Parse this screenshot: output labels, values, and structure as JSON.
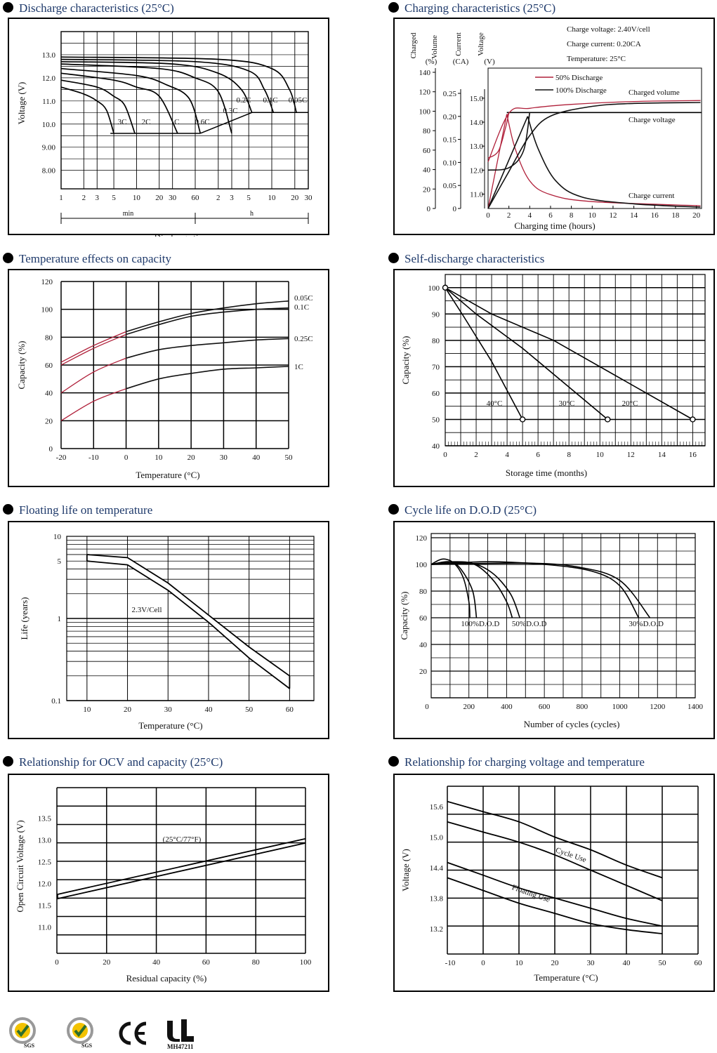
{
  "charts": {
    "discharge": {
      "title": "Discharge characteristics (25°C)",
      "chart_data": {
        "type": "line",
        "title": "Discharge characteristics (25°C)",
        "xlabel": "Discharge time",
        "ylabel": "Voltage (V)",
        "y_ticks": [
          "13.0",
          "12.0",
          "11.0",
          "10.0",
          "9.00",
          "8.00"
        ],
        "x_ticks_min": [
          "1",
          "2",
          "3",
          "5",
          "10",
          "20",
          "30",
          "60"
        ],
        "x_ticks_h": [
          "2",
          "3",
          "5",
          "10",
          "20",
          "30"
        ],
        "x_units": [
          "min",
          "h"
        ],
        "series": [
          {
            "name": "3C",
            "x_min": [
              1,
              2,
              3,
              4,
              5
            ],
            "y": [
              11.6,
              11.3,
              11.0,
              10.6,
              9.6
            ]
          },
          {
            "name": "2C",
            "x_min": [
              1,
              3,
              5,
              7,
              9.5
            ],
            "y": [
              11.9,
              11.6,
              11.2,
              10.8,
              9.6
            ]
          },
          {
            "name": "1C",
            "x_min": [
              1,
              5,
              10,
              20,
              35
            ],
            "y": [
              12.2,
              11.9,
              11.6,
              11.2,
              9.6
            ]
          },
          {
            "name": "0.6C",
            "x_min": [
              1,
              10,
              25,
              50,
              70
            ],
            "y": [
              12.4,
              12.1,
              11.7,
              11.1,
              9.6
            ]
          },
          {
            "name": "0.3C",
            "x_min": [
              1,
              20,
              60,
              120,
              180
            ],
            "y": [
              12.6,
              12.4,
              12.0,
              11.4,
              9.6
            ]
          },
          {
            "name": "0.2C",
            "x_min": [
              1,
              30,
              120,
              240,
              330
            ],
            "y": [
              12.7,
              12.6,
              12.2,
              11.5,
              10.5
            ]
          },
          {
            "name": "0.1C",
            "x_min": [
              1,
              60,
              300,
              480,
              630
            ],
            "y": [
              12.8,
              12.7,
              12.3,
              11.5,
              10.5
            ]
          },
          {
            "name": "0.05C",
            "x_min": [
              1,
              120,
              600,
              1020,
              1260
            ],
            "y": [
              12.9,
              12.8,
              12.4,
              11.5,
              10.5
            ]
          }
        ],
        "grid": true
      }
    },
    "charging": {
      "title": "Charging characteristics (25°C)",
      "chart_data": {
        "type": "line",
        "title": "Charging characteristics (25°C)",
        "xlabel": "Charging time (hours)",
        "axis_headers": [
          "Charged Volume (%)",
          "Current (CA)",
          "Voltage (V)"
        ],
        "axis_header_lines": [
          "Charged",
          "Volume",
          "(%)",
          "Current",
          "(CA)",
          "Voltage",
          "(V)"
        ],
        "x_ticks": [
          "0",
          "2",
          "4",
          "6",
          "8",
          "10",
          "12",
          "14",
          "16",
          "18",
          "20"
        ],
        "y_volume_ticks": [
          "140",
          "120",
          "100",
          "80",
          "60",
          "40",
          "20",
          "0"
        ],
        "y_current_ticks": [
          "0.25",
          "0.20",
          "0.15",
          "0.10",
          "0.05",
          "0"
        ],
        "y_voltage_ticks": [
          "15.0",
          "14.0",
          "13.0",
          "12.0",
          "11.0"
        ],
        "notes": [
          "Charge voltage: 2.40V/cell",
          "Charge current: 0.20CA",
          "Temperature: 25°C"
        ],
        "legend": [
          "50% Discharge",
          "100% Discharge"
        ],
        "curve_labels": [
          "Charged volume",
          "Charge voltage",
          "Charge current"
        ],
        "series": [
          {
            "name": "50% Discharge",
            "color": "#b0203a",
            "voltage_x": [
              0,
              1,
              2,
              2.2,
              4,
              8,
              12,
              20
            ],
            "voltage_y": [
              12.4,
              12.6,
              14.0,
              14.4,
              14.4,
              14.4,
              14.4,
              14.4
            ],
            "volume_x": [
              0,
              2,
              4,
              8,
              12,
              20
            ],
            "volume_y": [
              50,
              100,
              104,
              108,
              110,
              110
            ]
          },
          {
            "name": "100% Discharge",
            "color": "#111111",
            "voltage_x": [
              0,
              2,
              3.6,
              4,
              8,
              20
            ],
            "voltage_y": [
              12.0,
              12.1,
              13.0,
              14.4,
              14.4,
              14.4
            ],
            "volume_x": [
              0,
              2,
              4,
              8,
              12,
              20
            ],
            "volume_y": [
              0,
              40,
              80,
              100,
              105,
              110
            ]
          }
        ],
        "xlim": [
          0,
          20
        ]
      }
    },
    "temperature": {
      "title": "Temperature effects on capacity",
      "chart_data": {
        "type": "line",
        "title": "Temperature effects on capacity",
        "xlabel": "Temperature (°C)",
        "ylabel": "Capacity (%)",
        "x_ticks": [
          "-20",
          "-10",
          "0",
          "10",
          "20",
          "30",
          "40",
          "50"
        ],
        "y_ticks": [
          "120",
          "100",
          "80",
          "60",
          "40",
          "20",
          "0"
        ],
        "series": [
          {
            "name": "0.05C",
            "x": [
              -20,
              -10,
              0,
              10,
              20,
              30,
              40,
              50
            ],
            "y": [
              62,
              74,
              84,
              91,
              97,
              101,
              104,
              106
            ]
          },
          {
            "name": "0.1C",
            "x": [
              -20,
              -10,
              0,
              10,
              20,
              30,
              40,
              50
            ],
            "y": [
              60,
              72,
              82,
              89,
              95,
              98,
              100,
              101
            ]
          },
          {
            "name": "0.25C",
            "x": [
              -20,
              -10,
              0,
              10,
              20,
              30,
              40,
              50
            ],
            "y": [
              40,
              55,
              65,
              71,
              74,
              76,
              78,
              79
            ]
          },
          {
            "name": "1C",
            "x": [
              -20,
              -10,
              0,
              10,
              20,
              30,
              40,
              50
            ],
            "y": [
              20,
              34,
              43,
              50,
              54,
              57,
              58,
              59
            ]
          }
        ],
        "xlim": [
          -20,
          50
        ],
        "ylim": [
          0,
          120
        ]
      }
    },
    "selfdischarge": {
      "title": "Self-discharge characteristics",
      "chart_data": {
        "type": "line",
        "title": "Self-discharge characteristics",
        "xlabel": "Storage time (months)",
        "ylabel": "Capacity (%)",
        "x_ticks": [
          "0",
          "2",
          "4",
          "6",
          "8",
          "10",
          "12",
          "14",
          "16"
        ],
        "y_ticks": [
          "100",
          "90",
          "80",
          "70",
          "60",
          "50",
          "40"
        ],
        "series": [
          {
            "name": "40°C",
            "x": [
              0,
              5
            ],
            "y": [
              100,
              50
            ]
          },
          {
            "name": "30°C",
            "x": [
              0,
              10.5
            ],
            "y": [
              100,
              50
            ]
          },
          {
            "name": "20°C",
            "x": [
              0,
              16
            ],
            "y": [
              100,
              50
            ]
          }
        ],
        "xlim": [
          0,
          16
        ],
        "ylim": [
          40,
          100
        ]
      }
    },
    "floating": {
      "title": "Floating life on temperature",
      "chart_data": {
        "type": "area",
        "title": "Floating life on temperature",
        "xlabel": "Temperature (°C)",
        "ylabel": "Life (years)",
        "x_ticks": [
          "10",
          "20",
          "30",
          "40",
          "50",
          "60"
        ],
        "y_ticks": [
          "10",
          "5",
          "1",
          "0.1"
        ],
        "band_label": "2.3V/Cell",
        "band_upper": {
          "x": [
            10,
            20,
            30,
            40,
            50,
            60
          ],
          "y": [
            6.0,
            5.5,
            2.7,
            1.1,
            0.45,
            0.2
          ]
        },
        "band_lower": {
          "x": [
            10,
            20,
            30,
            40,
            50,
            60
          ],
          "y": [
            5.0,
            4.5,
            2.2,
            0.9,
            0.33,
            0.14
          ]
        },
        "yscale": "log",
        "xlim": [
          10,
          60
        ]
      }
    },
    "cycle": {
      "title": "Cycle life on D.O.D (25°C)",
      "chart_data": {
        "type": "line",
        "title": "Cycle life on D.O.D (25°C)",
        "xlabel": "Number of cycles (cycles)",
        "ylabel": "Capacity (%)",
        "x_ticks": [
          "0",
          "200",
          "400",
          "600",
          "800",
          "1000",
          "1200",
          "1400"
        ],
        "y_ticks": [
          "120",
          "100",
          "80",
          "60",
          "40",
          "20"
        ],
        "series": [
          {
            "name": "100%D.O.D",
            "x": [
              0,
              50,
              100,
              150,
              200,
              230
            ],
            "y": [
              100,
              104,
              102,
              96,
              80,
              60
            ]
          },
          {
            "name": "50%D.O.D",
            "x": [
              0,
              100,
              200,
              300,
              400,
              470
            ],
            "y": [
              100,
              102,
              102,
              96,
              80,
              60
            ]
          },
          {
            "name": "30%D.O.D",
            "x": [
              0,
              200,
              400,
              600,
              800,
              1000,
              1150
            ],
            "y": [
              100,
              101,
              101,
              100,
              96,
              84,
              60
            ]
          }
        ],
        "xlim": [
          0,
          1400
        ],
        "ylim": [
          0,
          120
        ]
      }
    },
    "ocv": {
      "title": "Relationship for OCV and capacity (25°C)",
      "chart_data": {
        "type": "line",
        "title": "Relationship for OCV and capacity (25°C)",
        "xlabel": "Residual capacity (%)",
        "ylabel": "Open Circuit Voltage (V)",
        "x_ticks": [
          "0",
          "20",
          "40",
          "60",
          "80",
          "100"
        ],
        "y_ticks": [
          "13.5",
          "13.0",
          "12.5",
          "12.0",
          "11.5",
          "11.0"
        ],
        "annotation": "(25°C/77°F)",
        "series": [
          {
            "name": "upper",
            "x": [
              0,
              100
            ],
            "y": [
              11.75,
              13.03
            ]
          },
          {
            "name": "lower",
            "x": [
              0,
              100
            ],
            "y": [
              11.65,
              12.93
            ]
          }
        ],
        "xlim": [
          0,
          100
        ]
      }
    },
    "chargetemp": {
      "title": "Relationship for charging voltage and temperature",
      "chart_data": {
        "type": "area",
        "title": "Relationship for charging voltage and temperature",
        "xlabel": "Temperature (°C)",
        "ylabel": "Voltage (V)",
        "x_ticks": [
          "-10",
          "0",
          "10",
          "20",
          "30",
          "40",
          "50",
          "60"
        ],
        "y_ticks": [
          "15.6",
          "15.0",
          "14.4",
          "13.8",
          "13.2"
        ],
        "series": [
          {
            "name": "Cycle Use",
            "x": [
              -10,
              0,
              10,
              20,
              30,
              40,
              50
            ],
            "upper": [
              15.7,
              15.5,
              15.3,
              15.0,
              14.75,
              14.45,
              14.2
            ],
            "lower": [
              15.3,
              15.1,
              14.9,
              14.65,
              14.35,
              14.05,
              13.75
            ]
          },
          {
            "name": "Floating Use",
            "x": [
              -10,
              0,
              10,
              20,
              30,
              40,
              50
            ],
            "upper": [
              14.5,
              14.25,
              14.0,
              13.8,
              13.6,
              13.4,
              13.25
            ],
            "lower": [
              14.2,
              13.95,
              13.7,
              13.5,
              13.3,
              13.18,
              13.1
            ]
          }
        ],
        "xlim": [
          -10,
          60
        ]
      }
    }
  },
  "certifications": {
    "logos": [
      "sgs-iso-badge",
      "sgs-iso-badge",
      "ce-mark",
      "ul-mark"
    ],
    "ul_text": "MH47211",
    "sgs_text": "SGS"
  }
}
